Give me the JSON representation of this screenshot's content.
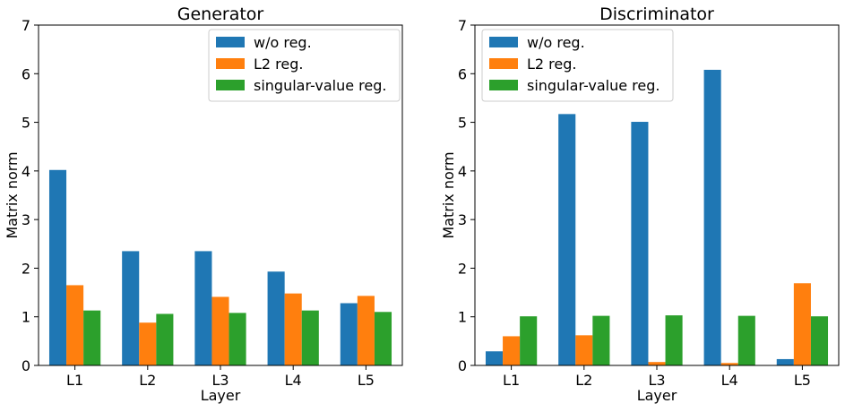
{
  "chart_data": [
    {
      "type": "bar",
      "title": "Generator",
      "xlabel": "Layer",
      "ylabel": "Matrix norm",
      "categories": [
        "L1",
        "L2",
        "L3",
        "L4",
        "L5"
      ],
      "ylim": [
        0,
        7
      ],
      "yticks": [
        "0",
        "1",
        "2",
        "3",
        "4",
        "5",
        "6",
        "7"
      ],
      "legend_position": "top-right",
      "grid": false,
      "series": [
        {
          "name": "w/o reg.",
          "color": "#1f77b4",
          "values": [
            4.02,
            2.35,
            2.35,
            1.93,
            1.28
          ]
        },
        {
          "name": "L2 reg.",
          "color": "#ff7f0e",
          "values": [
            1.65,
            0.88,
            1.41,
            1.48,
            1.43
          ]
        },
        {
          "name": "singular-value reg.",
          "color": "#2ca02c",
          "values": [
            1.13,
            1.06,
            1.08,
            1.13,
            1.1
          ]
        }
      ]
    },
    {
      "type": "bar",
      "title": "Discriminator",
      "xlabel": "Layer",
      "ylabel": "Matrix norm",
      "categories": [
        "L1",
        "L2",
        "L3",
        "L4",
        "L5"
      ],
      "ylim": [
        0,
        7
      ],
      "yticks": [
        "0",
        "1",
        "2",
        "3",
        "4",
        "5",
        "6",
        "7"
      ],
      "legend_position": "top-left",
      "grid": false,
      "series": [
        {
          "name": "w/o reg.",
          "color": "#1f77b4",
          "values": [
            0.29,
            5.17,
            5.01,
            6.08,
            0.13
          ]
        },
        {
          "name": "L2 reg.",
          "color": "#ff7f0e",
          "values": [
            0.6,
            0.62,
            0.07,
            0.05,
            1.69
          ]
        },
        {
          "name": "singular-value reg.",
          "color": "#2ca02c",
          "values": [
            1.01,
            1.02,
            1.03,
            1.02,
            1.01
          ]
        }
      ]
    }
  ]
}
